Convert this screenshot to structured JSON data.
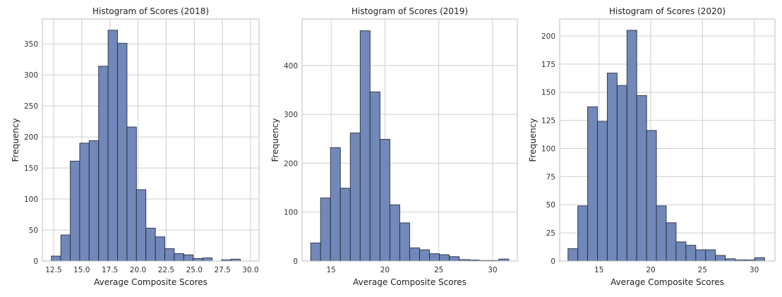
{
  "chart_data": [
    {
      "type": "bar",
      "title": "Histogram of Scores (2018)",
      "xlabel": "Average Composite Scores",
      "ylabel": "Frequency",
      "xlim": [
        11.5,
        30.75
      ],
      "ylim": [
        0,
        390
      ],
      "xticks": [
        "12.5",
        "15.0",
        "17.5",
        "20.0",
        "22.5",
        "25.0",
        "27.5",
        "30.0"
      ],
      "yticks": [
        "0",
        "50",
        "100",
        "150",
        "200",
        "250",
        "300",
        "350"
      ],
      "bin_start": 12.3,
      "bin_width": 0.84,
      "values": [
        8,
        42,
        161,
        190,
        194,
        314,
        372,
        351,
        216,
        115,
        53,
        39,
        20,
        12,
        10,
        4,
        5,
        0,
        2,
        3
      ],
      "bar_color": "#7188b8"
    },
    {
      "type": "bar",
      "title": "Histogram of Scores (2019)",
      "xlabel": "Average Composite Scores",
      "ylabel": "Frequency",
      "xlim": [
        12.3,
        32.3
      ],
      "ylim": [
        0,
        495
      ],
      "xticks": [
        "15",
        "20",
        "25",
        "30"
      ],
      "yticks": [
        "0",
        "100",
        "200",
        "300",
        "400"
      ],
      "bin_start": 13.1,
      "bin_width": 0.92,
      "values": [
        37,
        129,
        232,
        149,
        262,
        471,
        346,
        249,
        115,
        78,
        27,
        23,
        15,
        13,
        9,
        3,
        2,
        1,
        1,
        4
      ],
      "bar_color": "#7188b8"
    },
    {
      "type": "bar",
      "title": "Histogram of Scores (2020)",
      "xlabel": "Average Composite Scores",
      "ylabel": "Frequency",
      "xlim": [
        11.2,
        32.0
      ],
      "ylim": [
        0,
        215
      ],
      "xticks": [
        "15",
        "20",
        "25",
        "30"
      ],
      "yticks": [
        "0",
        "25",
        "50",
        "75",
        "100",
        "125",
        "150",
        "175",
        "200"
      ],
      "bin_start": 12.0,
      "bin_width": 0.95,
      "values": [
        11,
        49,
        137,
        124,
        167,
        156,
        205,
        147,
        116,
        49,
        34,
        17,
        14,
        10,
        10,
        5,
        2,
        1,
        1,
        3
      ],
      "bar_color": "#7188b8"
    }
  ]
}
